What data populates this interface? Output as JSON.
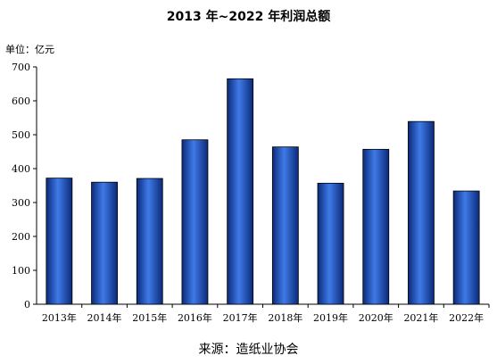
{
  "chart_data": {
    "type": "bar",
    "title": "2013 年~2022 年利润总额",
    "unit": "单位：亿元",
    "source": "来源：造纸业协会",
    "xlabel": "",
    "ylabel": "",
    "categories": [
      "2013年",
      "2014年",
      "2015年",
      "2016年",
      "2017年",
      "2018年",
      "2019年",
      "2020年",
      "2021年",
      "2022年"
    ],
    "values": [
      372,
      360,
      371,
      485,
      665,
      464,
      357,
      457,
      539,
      334
    ],
    "ylim": [
      0,
      700
    ],
    "yticks": [
      0,
      100,
      200,
      300,
      400,
      500,
      600,
      700
    ],
    "grid": false,
    "legend": "none",
    "bar_color": "#1a4ab3",
    "bar_color_light": "#3f7ae8",
    "bar_color_dark": "#0b2a78"
  }
}
